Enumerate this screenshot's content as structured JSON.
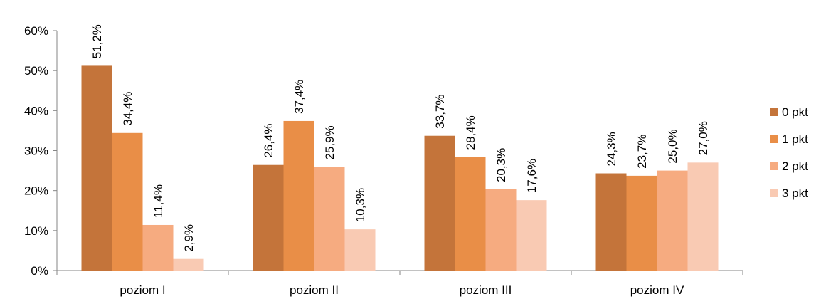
{
  "chart_data": {
    "type": "bar",
    "title": "",
    "xlabel": "",
    "ylabel": "",
    "ylim": [
      0,
      60
    ],
    "y_ticks": [
      "0%",
      "10%",
      "20%",
      "30%",
      "40%",
      "50%",
      "60%"
    ],
    "grid": false,
    "legend_position": "right",
    "categories": [
      "poziom I",
      "poziom II",
      "poziom III",
      "poziom IV"
    ],
    "series": [
      {
        "name": "0 pkt",
        "color": "#C4743A",
        "values": [
          51.2,
          26.4,
          33.7,
          24.3
        ],
        "labels": [
          "51,2%",
          "26,4%",
          "33,7%",
          "24,3%"
        ]
      },
      {
        "name": "1 pkt",
        "color": "#E98E47",
        "values": [
          34.4,
          37.4,
          28.4,
          23.7
        ],
        "labels": [
          "34,4%",
          "37,4%",
          "28,4%",
          "23,7%"
        ]
      },
      {
        "name": "2 pkt",
        "color": "#F6AB80",
        "values": [
          11.4,
          25.9,
          20.3,
          25.0
        ],
        "labels": [
          "11,4%",
          "25,9%",
          "20,3%",
          "25,0%"
        ]
      },
      {
        "name": "3 pkt",
        "color": "#F9CAB3",
        "values": [
          2.9,
          10.3,
          17.6,
          27.0
        ],
        "labels": [
          "2,9%",
          "10,3%",
          "17,6%",
          "27,0%"
        ]
      }
    ]
  }
}
